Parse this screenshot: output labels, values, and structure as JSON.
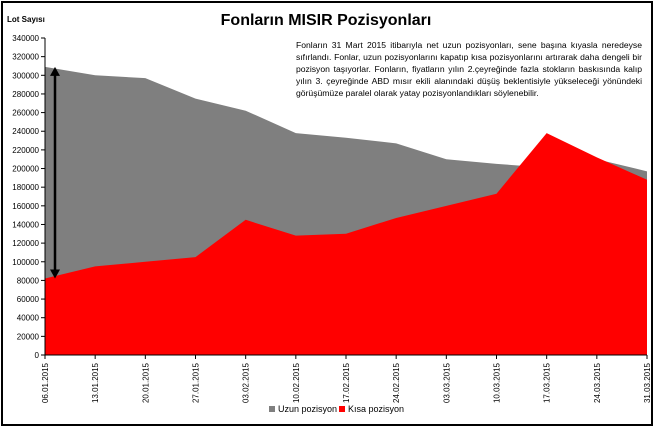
{
  "chart_data": {
    "type": "area",
    "title": "Fonların MISIR Pozisyonları",
    "ylabel": "Lot Sayısı",
    "xlabel": "",
    "ylim": [
      0,
      340000
    ],
    "y_ticks": [
      0,
      20000,
      40000,
      60000,
      80000,
      100000,
      120000,
      140000,
      160000,
      180000,
      200000,
      220000,
      240000,
      260000,
      280000,
      300000,
      320000,
      340000
    ],
    "y_tick_labels": [
      "0",
      "20000",
      "40000",
      "60000",
      "80000",
      "100000",
      "120000",
      "140000",
      "160000",
      "180000",
      "200000",
      "220000",
      "240000",
      "260000",
      "280000",
      "300000",
      "320000",
      "340000"
    ],
    "categories": [
      "06.01.2015",
      "13.01.2015",
      "20.01.2015",
      "27.01.2015",
      "03.02.2015",
      "10.02.2015",
      "17.02.2015",
      "24.02.2015",
      "03.03.2015",
      "10.03.2015",
      "17.03.2015",
      "24.03.2015",
      "31.03.2015"
    ],
    "series": [
      {
        "name": "Uzun pozisyon",
        "color": "#7f7f7f",
        "values": [
          309000,
          300000,
          297000,
          275000,
          262000,
          238000,
          233000,
          227000,
          210000,
          205000,
          201000,
          210000,
          197000
        ]
      },
      {
        "name": "Kısa pozisyon",
        "color": "#ff0000",
        "values": [
          82000,
          95000,
          100000,
          105000,
          145000,
          128000,
          130000,
          147000,
          160000,
          173000,
          238000,
          212000,
          188000
        ]
      }
    ],
    "grid": false,
    "legend_position": "bottom",
    "annotation": {
      "text": "Fonların 31 Mart 2015 itibarıyla net uzun pozisyonları, sene başına kıyasla neredeyse sıfırlandı. Fonlar, uzun pozisyonlarını kapatıp kısa pozisyonlarını artırarak daha dengeli bir pozisyon taşıyorlar. Fonların, fiyatların yılın 2.çeyreğinde fazla stokların baskısında kalıp yılın 3. çeyreğinde ABD mısır ekili alanındaki düşüş beklentisiyle yükseleceği yönündeki görüşümüze paralel olarak yatay pozisyonlandıkları söylenebilir."
    },
    "arrow": {
      "category": "06.01.2015",
      "from": 309000,
      "to": 82000,
      "style": "double-headed",
      "color": "#000000"
    }
  }
}
